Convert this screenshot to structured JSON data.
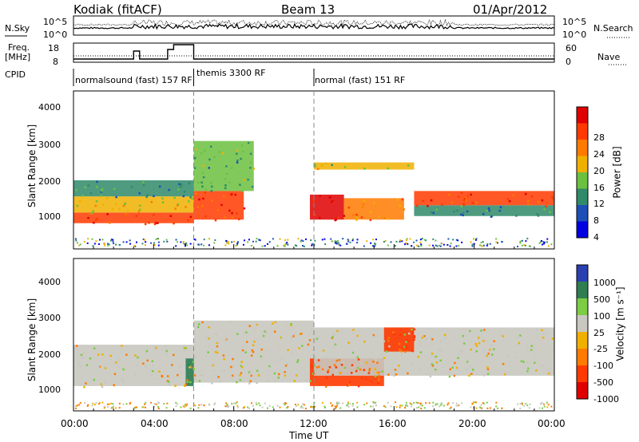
{
  "header": {
    "station": "Kodiak (fitACF)",
    "beam": "Beam 13",
    "date": "01/Apr/2012"
  },
  "top_panels": {
    "nsky_label": "N.Sky",
    "nsearch_label": "N.Search",
    "freq_label_1": "Freq.",
    "freq_label_2": "[MHz]",
    "nave_label": "Nave",
    "cpid_label": "CPID",
    "nsky_ticks": [
      "10^5",
      "10^0"
    ],
    "nsearch_ticks": [
      "10^5",
      "10^0"
    ],
    "freq_ticks": [
      "18",
      "8"
    ],
    "nave_ticks": [
      "60",
      "0"
    ]
  },
  "modes": [
    {
      "label": "normalsound (fast) 157 RF",
      "start_h": 0.0,
      "end_h": 6.0
    },
    {
      "label": "themis 3300 RF",
      "start_h": 6.0,
      "end_h": 12.0
    },
    {
      "label": "normal (fast) 151 RF",
      "start_h": 12.0,
      "end_h": 24.0
    }
  ],
  "power_panel": {
    "ylabel": "Slant Range [km]",
    "yticks": [
      "4000",
      "3000",
      "2000",
      "1000"
    ],
    "colorbar_label": "Power [dB]",
    "colorbar_ticks": [
      "28",
      "24",
      "20",
      "16",
      "12",
      "8",
      "4"
    ],
    "colors": [
      "#0000e0",
      "#1d4fb8",
      "#2f8a6a",
      "#6cc040",
      "#f0b000",
      "#ff7a00",
      "#ff3a00",
      "#e00000"
    ]
  },
  "velocity_panel": {
    "ylabel": "Slant Range [km]",
    "yticks": [
      "4000",
      "3000",
      "2000",
      "1000"
    ],
    "colorbar_label": "Velocity [m s⁻¹]",
    "colorbar_ticks": [
      "1000",
      "500",
      "100",
      "25",
      "-25",
      "-100",
      "-500",
      "-1000"
    ],
    "colors": [
      "#2a3fb0",
      "#2f7e52",
      "#7ccc44",
      "#c8c8c0",
      "#f0b000",
      "#ff7a00",
      "#ff3a00",
      "#e00000"
    ]
  },
  "x_axis": {
    "label": "Time UT",
    "ticks": [
      "00:00",
      "04:00",
      "08:00",
      "12:00",
      "16:00",
      "20:00",
      "00:00"
    ]
  },
  "chart_data": {
    "type": "heatmap",
    "xlabel": "Time UT",
    "ylabel": "Slant Range [km]",
    "xlim_hours": [
      0,
      24
    ],
    "ylim_km": [
      180,
      4600
    ],
    "power_range_db": [
      0,
      32
    ],
    "velocity_range_ms": [
      -1000,
      1000
    ],
    "mode_boundaries_h": [
      6,
      12
    ],
    "power_bands": [
      {
        "t0": 0.0,
        "t1": 6.0,
        "r0": 900,
        "r1": 1200,
        "power": 27
      },
      {
        "t0": 0.0,
        "t1": 6.0,
        "r0": 1200,
        "r1": 1650,
        "power": 18
      },
      {
        "t0": 0.0,
        "t1": 6.0,
        "r0": 1650,
        "r1": 2100,
        "power": 9
      },
      {
        "t0": 6.0,
        "t1": 8.5,
        "r0": 1000,
        "r1": 1800,
        "power": 26
      },
      {
        "t0": 6.0,
        "t1": 9.0,
        "r0": 1800,
        "r1": 3200,
        "power": 12
      },
      {
        "t0": 11.8,
        "t1": 13.5,
        "r0": 1000,
        "r1": 1700,
        "power": 29
      },
      {
        "t0": 13.5,
        "t1": 16.5,
        "r0": 1000,
        "r1": 1600,
        "power": 22
      },
      {
        "t0": 12.0,
        "t1": 17.0,
        "r0": 2400,
        "r1": 2600,
        "power": 16
      },
      {
        "t0": 17.0,
        "t1": 24.0,
        "r0": 1400,
        "r1": 1800,
        "power": 26
      },
      {
        "t0": 17.0,
        "t1": 24.0,
        "r0": 1100,
        "r1": 1400,
        "power": 10
      }
    ],
    "velocity_bands": [
      {
        "t0": 0.0,
        "t1": 6.0,
        "r0": 900,
        "r1": 2100,
        "velocity": 0
      },
      {
        "t0": 5.6,
        "t1": 6.0,
        "r0": 900,
        "r1": 1700,
        "velocity": 300
      },
      {
        "t0": 6.0,
        "t1": 12.0,
        "r0": 1000,
        "r1": 2800,
        "velocity": 0
      },
      {
        "t0": 11.8,
        "t1": 15.5,
        "r0": 900,
        "r1": 1700,
        "velocity": -300
      },
      {
        "t0": 12.0,
        "t1": 24.0,
        "r0": 1200,
        "r1": 2600,
        "velocity": 0
      },
      {
        "t0": 15.5,
        "t1": 17.0,
        "r0": 1900,
        "r1": 2600,
        "velocity": -500
      }
    ]
  }
}
